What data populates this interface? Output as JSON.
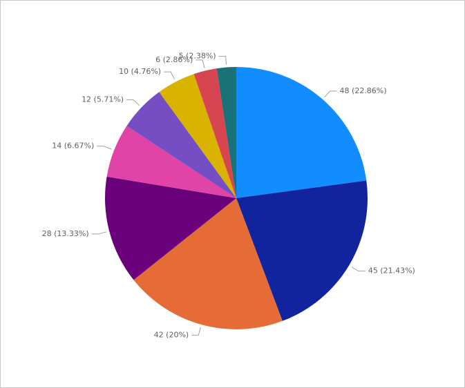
{
  "chart_data": {
    "type": "pie",
    "values": [
      48,
      45,
      42,
      28,
      14,
      12,
      10,
      6,
      5
    ],
    "value_labels": [
      "48 (22.86%)",
      "45 (21.43%)",
      "42 (20%)",
      "28 (13.33%)",
      "14 (6.67%)",
      "12 (5.71%)",
      "10 (4.76%)",
      "6 (2.86%)",
      "5 (2.38%)"
    ],
    "colors": [
      "#118DFF",
      "#12239E",
      "#E66C37",
      "#6B007B",
      "#E044A7",
      "#744EC2",
      "#D9B300",
      "#D64550",
      "#197278"
    ]
  }
}
